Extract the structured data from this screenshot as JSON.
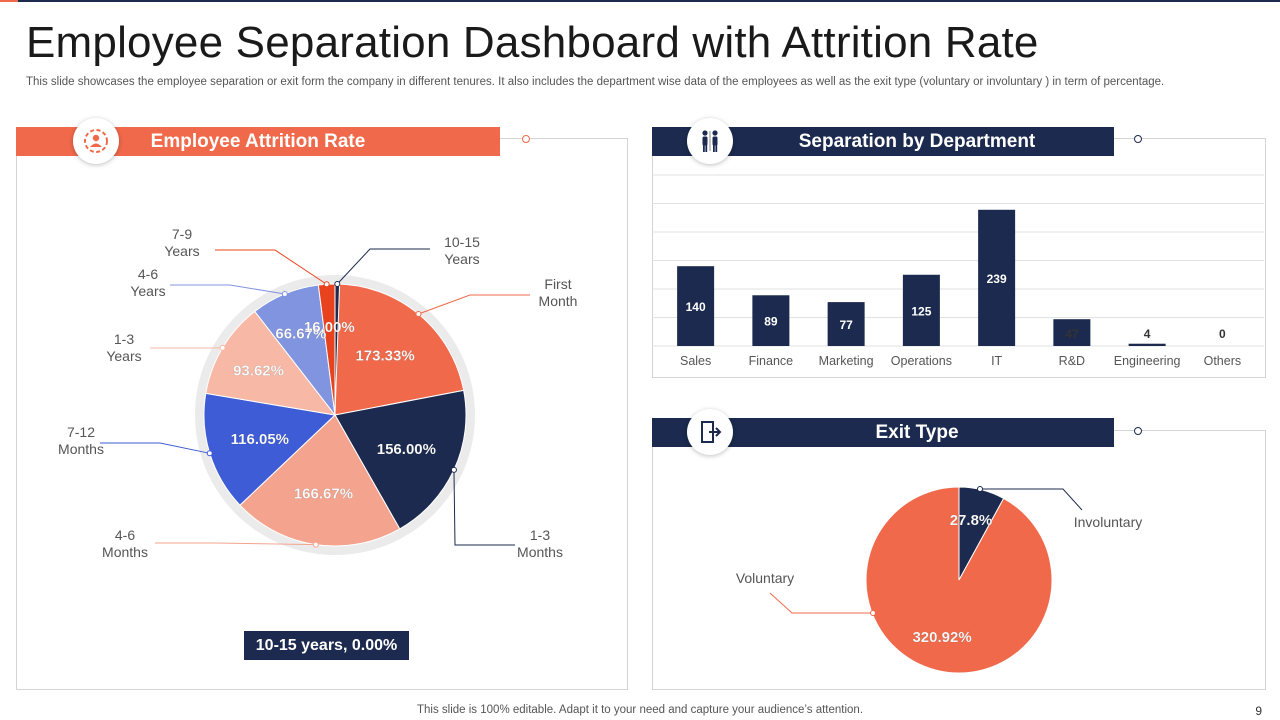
{
  "header": {
    "title": "Employee Separation Dashboard with Attrition Rate",
    "subtitle": "This slide showcases the employee separation or exit   form the company in different tenures. It also includes the department wise data of the employees as well as the exit type  (voluntary or involuntary ) in term of percentage."
  },
  "panels": {
    "attrition": {
      "title": "Employee Attrition Rate",
      "icon": "people-gear-icon"
    },
    "department": {
      "title": "Separation by Department",
      "icon": "people-icon"
    },
    "exit": {
      "title": "Exit Type",
      "icon": "exit-door-icon"
    }
  },
  "summary": {
    "label": "10-15 years, 0.00%"
  },
  "footer": {
    "text": "This slide is 100% editable. Adapt it to your need and capture your audience’s attention.",
    "page": "9"
  },
  "colors": {
    "orange": "#f0694a",
    "navy": "#1b2a4e",
    "red": "#e8431e",
    "blue": "#3d5cd6",
    "periwinkle": "#8194df",
    "peach": "#f7b8a6",
    "salmon": "#f4a48e",
    "grey_ring": "#ebebeb"
  },
  "chart_data": [
    {
      "type": "pie",
      "title": "Employee Attrition Rate",
      "slices": [
        {
          "key": "first_month",
          "label": "First Month",
          "value": 173.33,
          "value_label": "173.33%",
          "color": "#f0694a"
        },
        {
          "key": "m1_3",
          "label": "1-3 Months",
          "value": 156.0,
          "value_label": "156.00%",
          "color": "#1b2a4e"
        },
        {
          "key": "m4_6",
          "label": "4-6 Months",
          "value": 166.67,
          "value_label": "166.67%",
          "color": "#f4a48e"
        },
        {
          "key": "m7_12",
          "label": "7-12 Months",
          "value": 116.05,
          "value_label": "116.05%",
          "color": "#3d5cd6"
        },
        {
          "key": "y1_3",
          "label": "1-3 Years",
          "value": 93.62,
          "value_label": "93.62%",
          "color": "#f7b8a6"
        },
        {
          "key": "y4_6",
          "label": "4-6 Years",
          "value": 66.67,
          "value_label": "66.67%",
          "color": "#8194df"
        },
        {
          "key": "y7_9",
          "label": "7-9 Years",
          "value": 16.0,
          "value_label": "16.00%",
          "color": "#e8431e"
        },
        {
          "key": "y10_15",
          "label": "10-15 Years",
          "value": 0.0,
          "value_label": "",
          "color": "#1b2a4e"
        }
      ]
    },
    {
      "type": "bar",
      "title": "Separation by Department",
      "categories": [
        "Sales",
        "Finance",
        "Marketing",
        "Operations",
        "IT",
        "R&D",
        "Engineering",
        "Others"
      ],
      "values": [
        140,
        89,
        77,
        125,
        239,
        47,
        4,
        0
      ],
      "ylim": [
        0,
        300
      ],
      "grid": true
    },
    {
      "type": "pie",
      "title": "Exit Type",
      "slices": [
        {
          "key": "involuntary",
          "label": "Involuntary",
          "value": 27.8,
          "value_label": "27.8%",
          "color": "#1b2a4e"
        },
        {
          "key": "voluntary",
          "label": "Voluntary",
          "value": 320.92,
          "value_label": "320.92%",
          "color": "#f0694a"
        }
      ]
    }
  ]
}
